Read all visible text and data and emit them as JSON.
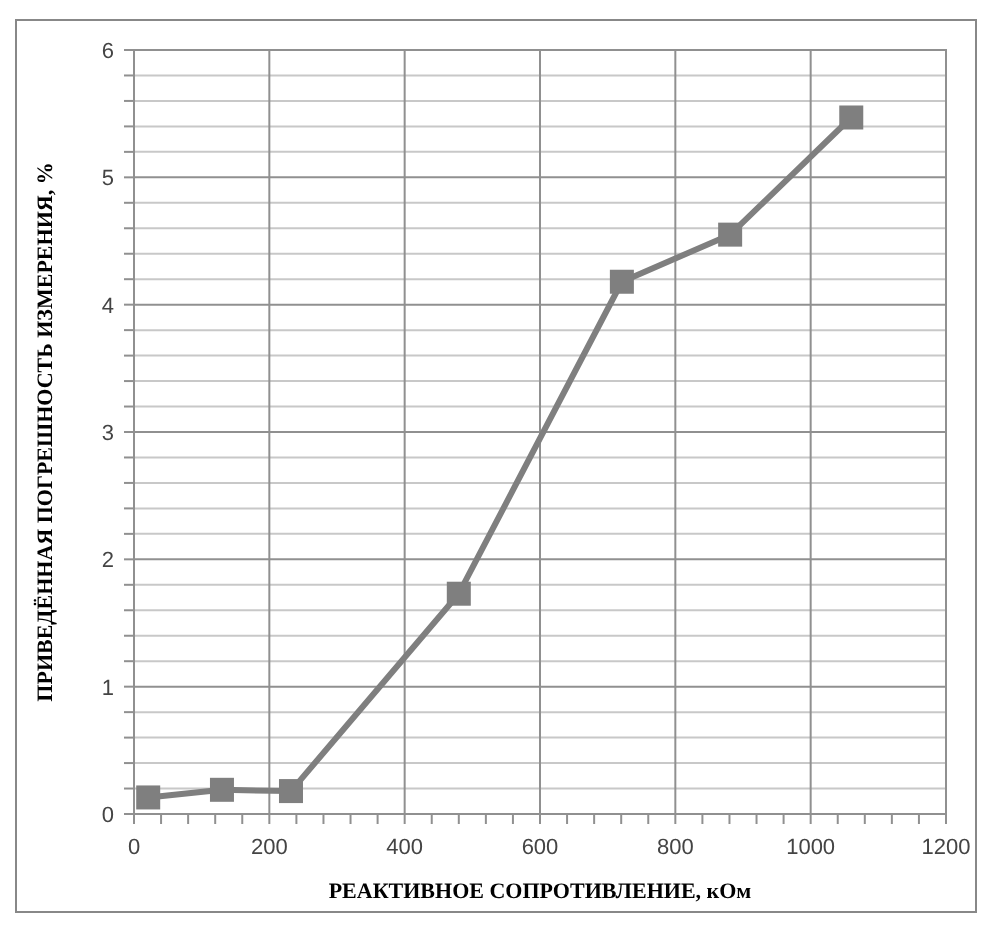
{
  "chart_data": {
    "type": "line",
    "xlabel": "РЕАКТИВНОЕ СОПРОТИВЛЕНИЕ, кОм",
    "ylabel": "ПРИВЕДЁННАЯ ПОГРЕШНОСТЬ ИЗМЕРЕНИЯ, %",
    "x": [
      21,
      130,
      232,
      480,
      721,
      881,
      1060
    ],
    "series": [
      {
        "color": "#7f7f7f",
        "values": [
          0.13,
          0.19,
          0.18,
          1.73,
          4.18,
          4.55,
          5.47
        ]
      }
    ],
    "xlim": [
      0,
      1200
    ],
    "xticks": [
      0,
      {
        "value": 40,
        "label": null
      },
      {
        "value": 80,
        "label": null
      },
      {
        "value": 120,
        "label": null
      },
      {
        "value": 160,
        "label": null
      },
      200,
      {
        "value": 240,
        "label": null
      },
      {
        "value": 280,
        "label": null
      },
      {
        "value": 320,
        "label": null
      },
      {
        "value": 360,
        "label": null
      },
      400,
      {
        "value": 440,
        "label": null
      },
      {
        "value": 480,
        "label": null
      },
      {
        "value": 520,
        "label": null
      },
      {
        "value": 560,
        "label": null
      },
      600,
      {
        "value": 640,
        "label": null
      },
      {
        "value": 680,
        "label": null
      },
      {
        "value": 720,
        "label": null
      },
      {
        "value": 760,
        "label": null
      },
      800,
      {
        "value": 840,
        "label": null
      },
      {
        "value": 880,
        "label": null
      },
      {
        "value": 920,
        "label": null
      },
      {
        "value": 960,
        "label": null
      },
      1000,
      {
        "value": 1040,
        "label": null
      },
      {
        "value": 1080,
        "label": null
      },
      {
        "value": 1120,
        "label": null
      },
      {
        "value": 1160,
        "label": null
      },
      1200
    ],
    "ylim": [
      0,
      6
    ],
    "yticks": [
      0,
      {
        "value": 0.2,
        "label": null
      },
      {
        "value": 0.4,
        "label": null
      },
      {
        "value": 0.6,
        "label": null
      },
      {
        "value": 0.8,
        "label": null
      },
      1,
      {
        "value": 1.2,
        "label": null
      },
      {
        "value": 1.4,
        "label": null
      },
      {
        "value": 1.6,
        "label": null
      },
      {
        "value": 1.8,
        "label": null
      },
      2,
      {
        "value": 2.2,
        "label": null
      },
      {
        "value": 2.4,
        "label": null
      },
      {
        "value": 2.6,
        "label": null
      },
      {
        "value": 2.8,
        "label": null
      },
      3,
      {
        "value": 3.2,
        "label": null
      },
      {
        "value": 3.4,
        "label": null
      },
      {
        "value": 3.6,
        "label": null
      },
      {
        "value": 3.8,
        "label": null
      },
      4,
      {
        "value": 4.2,
        "label": null
      },
      {
        "value": 4.4,
        "label": null
      },
      {
        "value": 4.6,
        "label": null
      },
      {
        "value": 4.8,
        "label": null
      },
      5,
      {
        "value": 5.2,
        "label": null
      },
      {
        "value": 5.4,
        "label": null
      },
      {
        "value": 5.6,
        "label": null
      },
      {
        "value": 5.8,
        "label": null
      },
      6
    ],
    "grid": true,
    "marker": "square",
    "line_style": "solid"
  }
}
